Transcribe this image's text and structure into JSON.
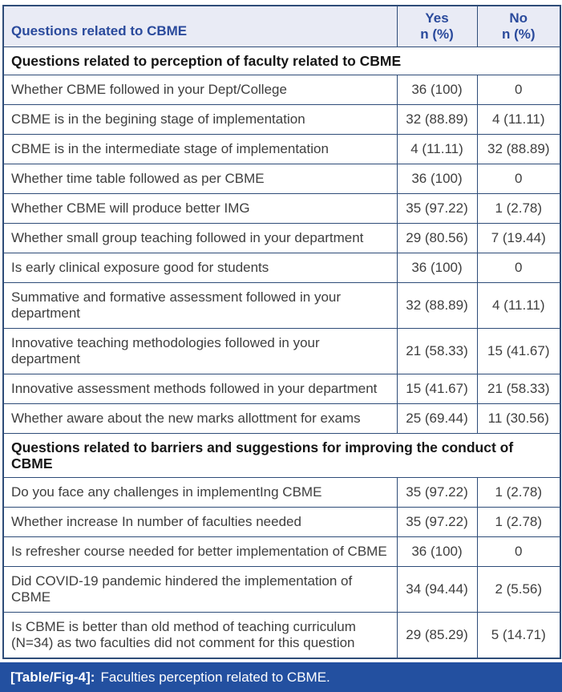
{
  "colors": {
    "header_bg": "#e9ebf5",
    "header_text": "#2a4a9c",
    "border": "#2e4c78",
    "body_text": "#3e3e3e",
    "section_text": "#161616",
    "caption_bg": "#2350a0",
    "caption_text": "#ffffff"
  },
  "table": {
    "header": {
      "question_col": "Questions related to CBME",
      "yes_col": "Yes\nn (%)",
      "no_col": "No\nn (%)"
    },
    "sections": [
      {
        "title": "Questions related to perception of faculty related to CBME",
        "rows": [
          {
            "question": "Whether CBME followed in your Dept/College",
            "yes": "36 (100)",
            "no": "0"
          },
          {
            "question": "CBME is in the begining stage of implementation",
            "yes": "32 (88.89)",
            "no": "4 (11.11)"
          },
          {
            "question": "CBME is in the intermediate stage of implementation",
            "yes": "4 (11.11)",
            "no": "32 (88.89)"
          },
          {
            "question": "Whether time table followed as per CBME",
            "yes": "36 (100)",
            "no": "0"
          },
          {
            "question": "Whether CBME will produce better IMG",
            "yes": "35 (97.22)",
            "no": "1 (2.78)"
          },
          {
            "question": "Whether small group teaching followed in your department",
            "yes": "29 (80.56)",
            "no": "7 (19.44)"
          },
          {
            "question": "Is early clinical exposure good for students",
            "yes": "36 (100)",
            "no": "0"
          },
          {
            "question": "Summative and formative assessment followed in your department",
            "yes": "32 (88.89)",
            "no": "4 (11.11)"
          },
          {
            "question": "Innovative teaching methodologies followed in your department",
            "yes": "21 (58.33)",
            "no": "15 (41.67)"
          },
          {
            "question": "Innovative assessment methods followed in your department",
            "yes": "15 (41.67)",
            "no": "21 (58.33)"
          },
          {
            "question": "Whether aware about the new marks allottment for exams",
            "yes": "25 (69.44)",
            "no": "11 (30.56)"
          }
        ]
      },
      {
        "title": "Questions related to barriers and suggestions for improving the conduct of CBME",
        "rows": [
          {
            "question": "Do you face any challenges in implementIng CBME",
            "yes": "35 (97.22)",
            "no": "1 (2.78)"
          },
          {
            "question": "Whether increase In number of faculties needed",
            "yes": "35 (97.22)",
            "no": "1 (2.78)"
          },
          {
            "question": "Is refresher course needed for better implementation of CBME",
            "yes": "36 (100)",
            "no": "0"
          },
          {
            "question": "Did COVID-19 pandemic hindered the implementation of CBME",
            "yes": "34 (94.44)",
            "no": "2 (5.56)"
          },
          {
            "question": "Is CBME is better than old method of teaching curriculum (N=34) as two faculties did not comment for this question",
            "yes": "29 (85.29)",
            "no": "5 (14.71)"
          }
        ]
      }
    ],
    "caption": {
      "label": "[Table/Fig-4]:",
      "text": "Faculties perception related to CBME."
    }
  }
}
